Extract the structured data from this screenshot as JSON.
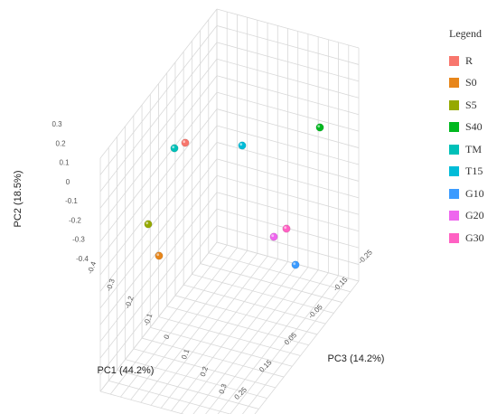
{
  "chart_data": {
    "type": "scatter",
    "projection": "3d",
    "title": "",
    "axes": {
      "x": {
        "label": "PC1 (44.2%)",
        "range": [
          -0.45,
          0.3
        ],
        "ticks": [
          "-0.4",
          "-0.3",
          "-0.2",
          "-0.1",
          "0",
          "0.1",
          "0.2",
          "0.3"
        ]
      },
      "y": {
        "label": "PC2 (18.5%)",
        "range": [
          -0.4,
          0.3
        ],
        "ticks": [
          "0.3",
          "0.2",
          "0.1",
          "0",
          "-0.1",
          "-0.2",
          "-0.3",
          "-0.4"
        ]
      },
      "z": {
        "label": "PC3 (14.2%)",
        "range": [
          -0.25,
          0.25
        ],
        "ticks": [
          "-0.25",
          "-0.15",
          "-0.05",
          "0.05",
          "0.15",
          "0.25"
        ]
      }
    },
    "grid": true,
    "legend": {
      "title": "Legend",
      "position": "right"
    },
    "series": [
      {
        "name": "R",
        "color": "#F8766D",
        "x": -0.33,
        "y": 0.24,
        "z": -0.12
      },
      {
        "name": "S0",
        "color": "#E7861B",
        "x": -0.4,
        "y": -0.33,
        "z": 0.1
      },
      {
        "name": "S5",
        "color": "#95A900",
        "x": -0.4,
        "y": -0.21,
        "z": 0.1
      },
      {
        "name": "S40",
        "color": "#00B81F",
        "x": 0.28,
        "y": 0.28,
        "z": -0.2
      },
      {
        "name": "TM",
        "color": "#00C0B8",
        "x": -0.34,
        "y": 0.22,
        "z": -0.1
      },
      {
        "name": "T15",
        "color": "#00BCD8",
        "x": -0.05,
        "y": 0.2,
        "z": -0.22
      },
      {
        "name": "G10",
        "color": "#3B9BFF",
        "x": 0.24,
        "y": -0.19,
        "z": 0.18
      },
      {
        "name": "G20",
        "color": "#EE66EE",
        "x": 0.22,
        "y": -0.12,
        "z": 0.06
      },
      {
        "name": "G30",
        "color": "#FF61C3",
        "x": 0.24,
        "y": -0.1,
        "z": 0.03
      }
    ]
  }
}
